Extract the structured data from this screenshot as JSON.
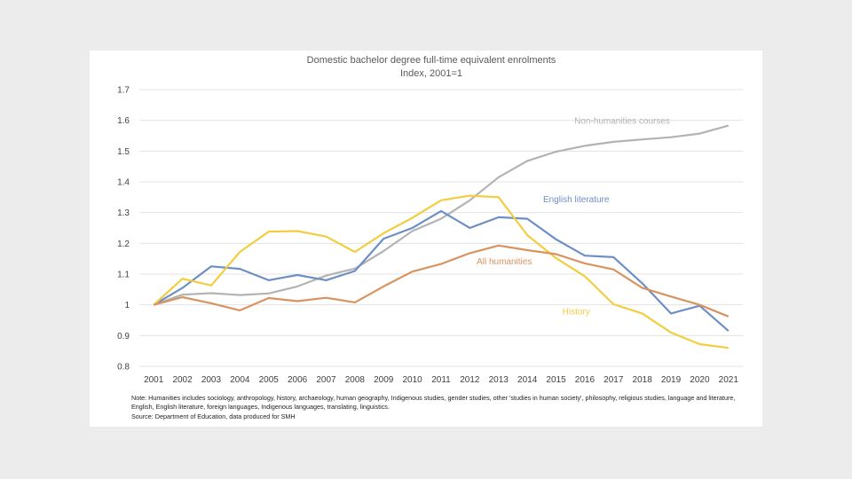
{
  "chart_data": {
    "type": "line",
    "title": "Domestic bachelor degree full-time equivalent enrolments",
    "subtitle": "Index, 2001=1",
    "xlabel": "",
    "ylabel": "",
    "ylim": [
      0.8,
      1.7
    ],
    "yticks": [
      "1.7",
      "1.6",
      "1.5",
      "1.4",
      "1.3",
      "1.2",
      "1.1",
      "1",
      "0.9",
      "0.8"
    ],
    "grid": true,
    "legend": "direct labels",
    "x": [
      "2001",
      "2002",
      "2003",
      "2004",
      "2005",
      "2006",
      "2007",
      "2008",
      "2009",
      "2010",
      "2011",
      "2012",
      "2013",
      "2014",
      "2015",
      "2016",
      "2017",
      "2018",
      "2019",
      "2020",
      "2021"
    ],
    "series": [
      {
        "name": "Non-humanities courses",
        "color": "#b3b3b3",
        "values": [
          1.0,
          1.033,
          1.038,
          1.032,
          1.037,
          1.06,
          1.095,
          1.118,
          1.175,
          1.24,
          1.28,
          1.34,
          1.415,
          1.468,
          1.498,
          1.517,
          1.53,
          1.538,
          1.545,
          1.557,
          1.583
        ]
      },
      {
        "name": "English literature",
        "color": "#6d8fc4",
        "values": [
          1.0,
          1.055,
          1.125,
          1.117,
          1.08,
          1.097,
          1.08,
          1.11,
          1.215,
          1.25,
          1.305,
          1.25,
          1.285,
          1.28,
          1.213,
          1.16,
          1.155,
          1.07,
          0.972,
          0.997,
          0.915
        ]
      },
      {
        "name": "History",
        "color": "#f2cd3f",
        "values": [
          1.0,
          1.085,
          1.063,
          1.172,
          1.238,
          1.24,
          1.222,
          1.172,
          1.233,
          1.283,
          1.34,
          1.355,
          1.35,
          1.227,
          1.152,
          1.093,
          1.002,
          0.972,
          0.91,
          0.872,
          0.86
        ]
      },
      {
        "name": "All humanities",
        "color": "#d9935f",
        "values": [
          1.0,
          1.025,
          1.005,
          0.982,
          1.022,
          1.012,
          1.023,
          1.008,
          1.06,
          1.108,
          1.133,
          1.168,
          1.193,
          1.178,
          1.165,
          1.135,
          1.115,
          1.055,
          1.027,
          1.0,
          0.962
        ]
      }
    ]
  },
  "notes": {
    "note": "Note: Humanities includes sociology, anthropology, history, archaeology, human geography, Indigenous studies, gender studies, other 'studies in human society', philosophy, religious studies, language and literature, English, English literature, foreign languages, Indigenous languages, translating, linguistics.",
    "source": "Source: Department of Education, data produced for SMH"
  }
}
